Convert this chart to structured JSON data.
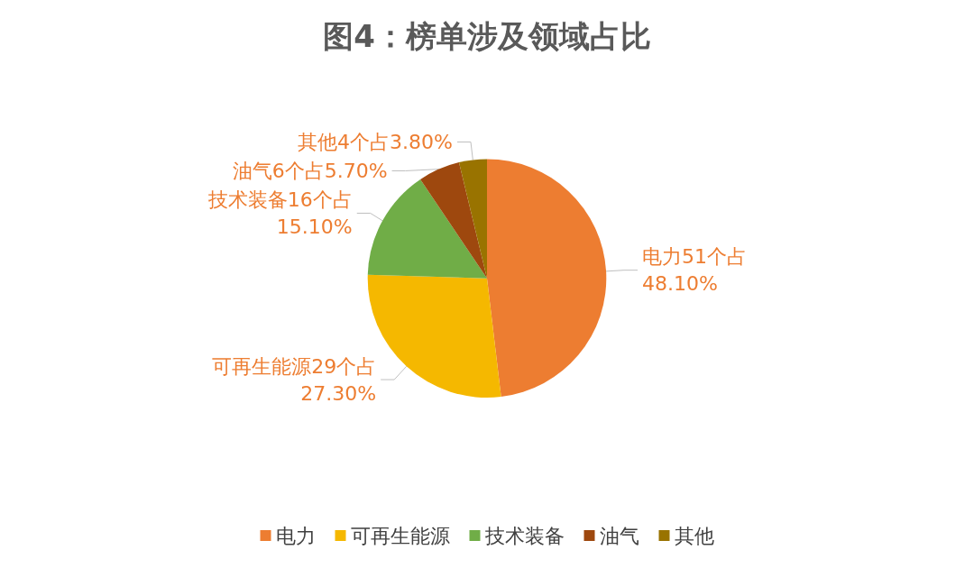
{
  "chart_data": {
    "type": "pie",
    "title": "图4：榜单涉及领域占比",
    "categories": [
      "电力",
      "可再生能源",
      "技术装备",
      "油气",
      "其他"
    ],
    "values": [
      51,
      29,
      16,
      6,
      4
    ],
    "colors": [
      "#ed7d31",
      "#f5b800",
      "#70ad47",
      "#9e480e",
      "#997300"
    ],
    "value_labels": [
      "电力51个占48.10%",
      "可再生能源29个占27.30%",
      "技术装备16个占15.10%",
      "油气6个占5.70%",
      "其他4个占3.80%"
    ],
    "legend": "bottom"
  }
}
